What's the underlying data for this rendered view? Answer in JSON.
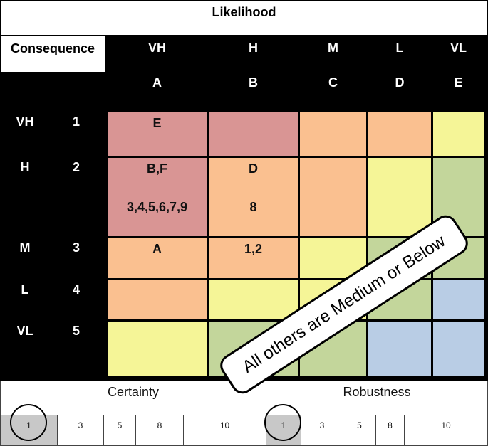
{
  "title": "Likelihood",
  "consequence_label": "Consequence",
  "likelihood_cols": [
    {
      "level": "VH",
      "letter": "A"
    },
    {
      "level": "H",
      "letter": "B"
    },
    {
      "level": "M",
      "letter": "C"
    },
    {
      "level": "L",
      "letter": "D"
    },
    {
      "level": "VL",
      "letter": "E"
    }
  ],
  "consequence_rows": [
    {
      "level": "VH",
      "number": "1"
    },
    {
      "level": "H",
      "number": "2"
    },
    {
      "level": "M",
      "number": "3"
    },
    {
      "level": "L",
      "number": "4"
    },
    {
      "level": "VL",
      "number": "5"
    }
  ],
  "colors": {
    "very_high": "#d99594",
    "high": "#fac090",
    "medium": "#f5f597",
    "low": "#c3d69b",
    "very_low": "#b9cde5"
  },
  "matrix": [
    [
      {
        "c": "very_high",
        "t1": "E",
        "t2": ""
      },
      {
        "c": "very_high",
        "t1": "",
        "t2": ""
      },
      {
        "c": "high",
        "t1": "",
        "t2": ""
      },
      {
        "c": "high",
        "t1": "",
        "t2": ""
      },
      {
        "c": "medium",
        "t1": "",
        "t2": ""
      }
    ],
    [
      {
        "c": "very_high",
        "t1": "B,F",
        "t2": "3,4,5,6,7,9"
      },
      {
        "c": "high",
        "t1": "D",
        "t2": "8"
      },
      {
        "c": "high",
        "t1": "",
        "t2": ""
      },
      {
        "c": "medium",
        "t1": "",
        "t2": ""
      },
      {
        "c": "low",
        "t1": "",
        "t2": ""
      }
    ],
    [
      {
        "c": "high",
        "t1": "A",
        "t2": ""
      },
      {
        "c": "high",
        "t1": "1,2",
        "t2": ""
      },
      {
        "c": "medium",
        "t1": "",
        "t2": ""
      },
      {
        "c": "low",
        "t1": "",
        "t2": ""
      },
      {
        "c": "low",
        "t1": "",
        "t2": ""
      }
    ],
    [
      {
        "c": "high",
        "t1": "",
        "t2": ""
      },
      {
        "c": "medium",
        "t1": "",
        "t2": ""
      },
      {
        "c": "medium",
        "t1": "",
        "t2": ""
      },
      {
        "c": "low",
        "t1": "",
        "t2": ""
      },
      {
        "c": "very_low",
        "t1": "",
        "t2": ""
      }
    ],
    [
      {
        "c": "medium",
        "t1": "",
        "t2": ""
      },
      {
        "c": "low",
        "t1": "",
        "t2": ""
      },
      {
        "c": "low",
        "t1": "",
        "t2": ""
      },
      {
        "c": "very_low",
        "t1": "",
        "t2": ""
      },
      {
        "c": "very_low",
        "t1": "",
        "t2": ""
      }
    ]
  ],
  "callout": "All others are Medium or Below",
  "certainty": {
    "label": "Certainty",
    "scale": [
      "1",
      "3",
      "5",
      "8",
      "10"
    ],
    "selected_index": 0
  },
  "robustness": {
    "label": "Robustness",
    "scale": [
      "1",
      "3",
      "5",
      "8",
      "10"
    ],
    "selected_index": 0
  }
}
